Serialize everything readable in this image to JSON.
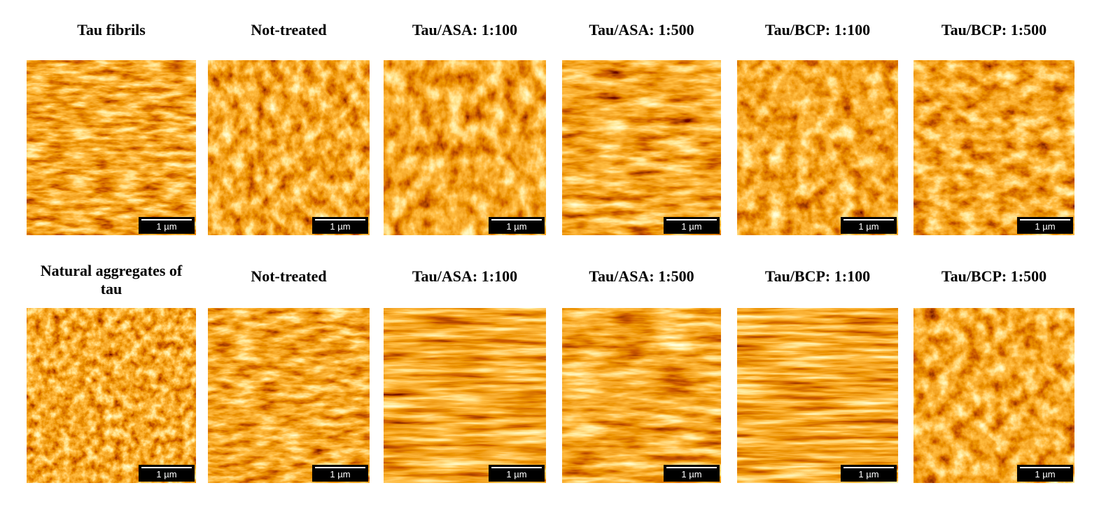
{
  "rows": [
    {
      "panels": [
        {
          "title": "Tau fibrils",
          "scale": "1 µm"
        },
        {
          "title": "Not-treated",
          "scale": "1 µm"
        },
        {
          "title": "Tau/ASA: 1:100",
          "scale": "1 µm"
        },
        {
          "title": "Tau/ASA: 1:500",
          "scale": "1 µm"
        },
        {
          "title": "Tau/BCP: 1:100",
          "scale": "1 µm"
        },
        {
          "title": "Tau/BCP: 1:500",
          "scale": "1 µm"
        }
      ]
    },
    {
      "panels": [
        {
          "title": "Natural aggregates of tau",
          "scale": "1 µm"
        },
        {
          "title": "Not-treated",
          "scale": "1 µm"
        },
        {
          "title": "Tau/ASA: 1:100",
          "scale": "1 µm"
        },
        {
          "title": "Tau/ASA: 1:500",
          "scale": "1 µm"
        },
        {
          "title": "Tau/BCP: 1:100",
          "scale": "1 µm"
        },
        {
          "title": "Tau/BCP: 1:500",
          "scale": "1 µm"
        }
      ]
    }
  ]
}
